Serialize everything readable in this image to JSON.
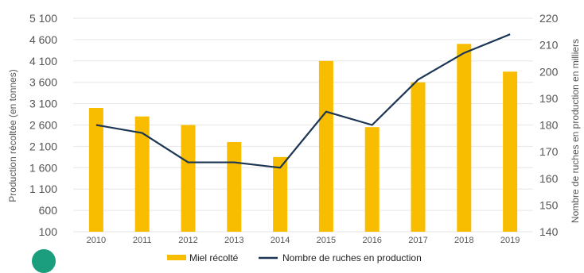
{
  "chart_data": {
    "type": "bar+line",
    "categories": [
      "2010",
      "2011",
      "2012",
      "2013",
      "2014",
      "2015",
      "2016",
      "2017",
      "2018",
      "2019"
    ],
    "series": [
      {
        "name": "Miel récolté",
        "kind": "bar",
        "axis": "left",
        "color": "#f9bd00",
        "values": [
          3000,
          2800,
          2600,
          2200,
          1850,
          4100,
          2550,
          3600,
          4500,
          3850
        ]
      },
      {
        "name": "Nombre de ruches en production",
        "kind": "line",
        "axis": "right",
        "color": "#1b3554",
        "values": [
          180,
          177,
          166,
          166,
          164,
          185,
          180,
          197,
          207,
          214
        ]
      }
    ],
    "ylabel": "Production récoltée (en tonnes)",
    "y2label": "Nombre de ruches en production en milliers",
    "ylim": [
      100,
      5100
    ],
    "y2lim": [
      140,
      220
    ],
    "yticks": [
      "100",
      "600",
      "1 100",
      "1 600",
      "2 100",
      "2 600",
      "3 100",
      "3 600",
      "4 100",
      "4 600",
      "5 100"
    ],
    "y2ticks": [
      "140",
      "150",
      "160",
      "170",
      "180",
      "190",
      "200",
      "210",
      "220"
    ],
    "grid": true,
    "legend": "bottom"
  },
  "colors": {
    "grid": "#e6e6e6",
    "tick_text": "#555555",
    "corner_accent": "#1a9e7e"
  }
}
